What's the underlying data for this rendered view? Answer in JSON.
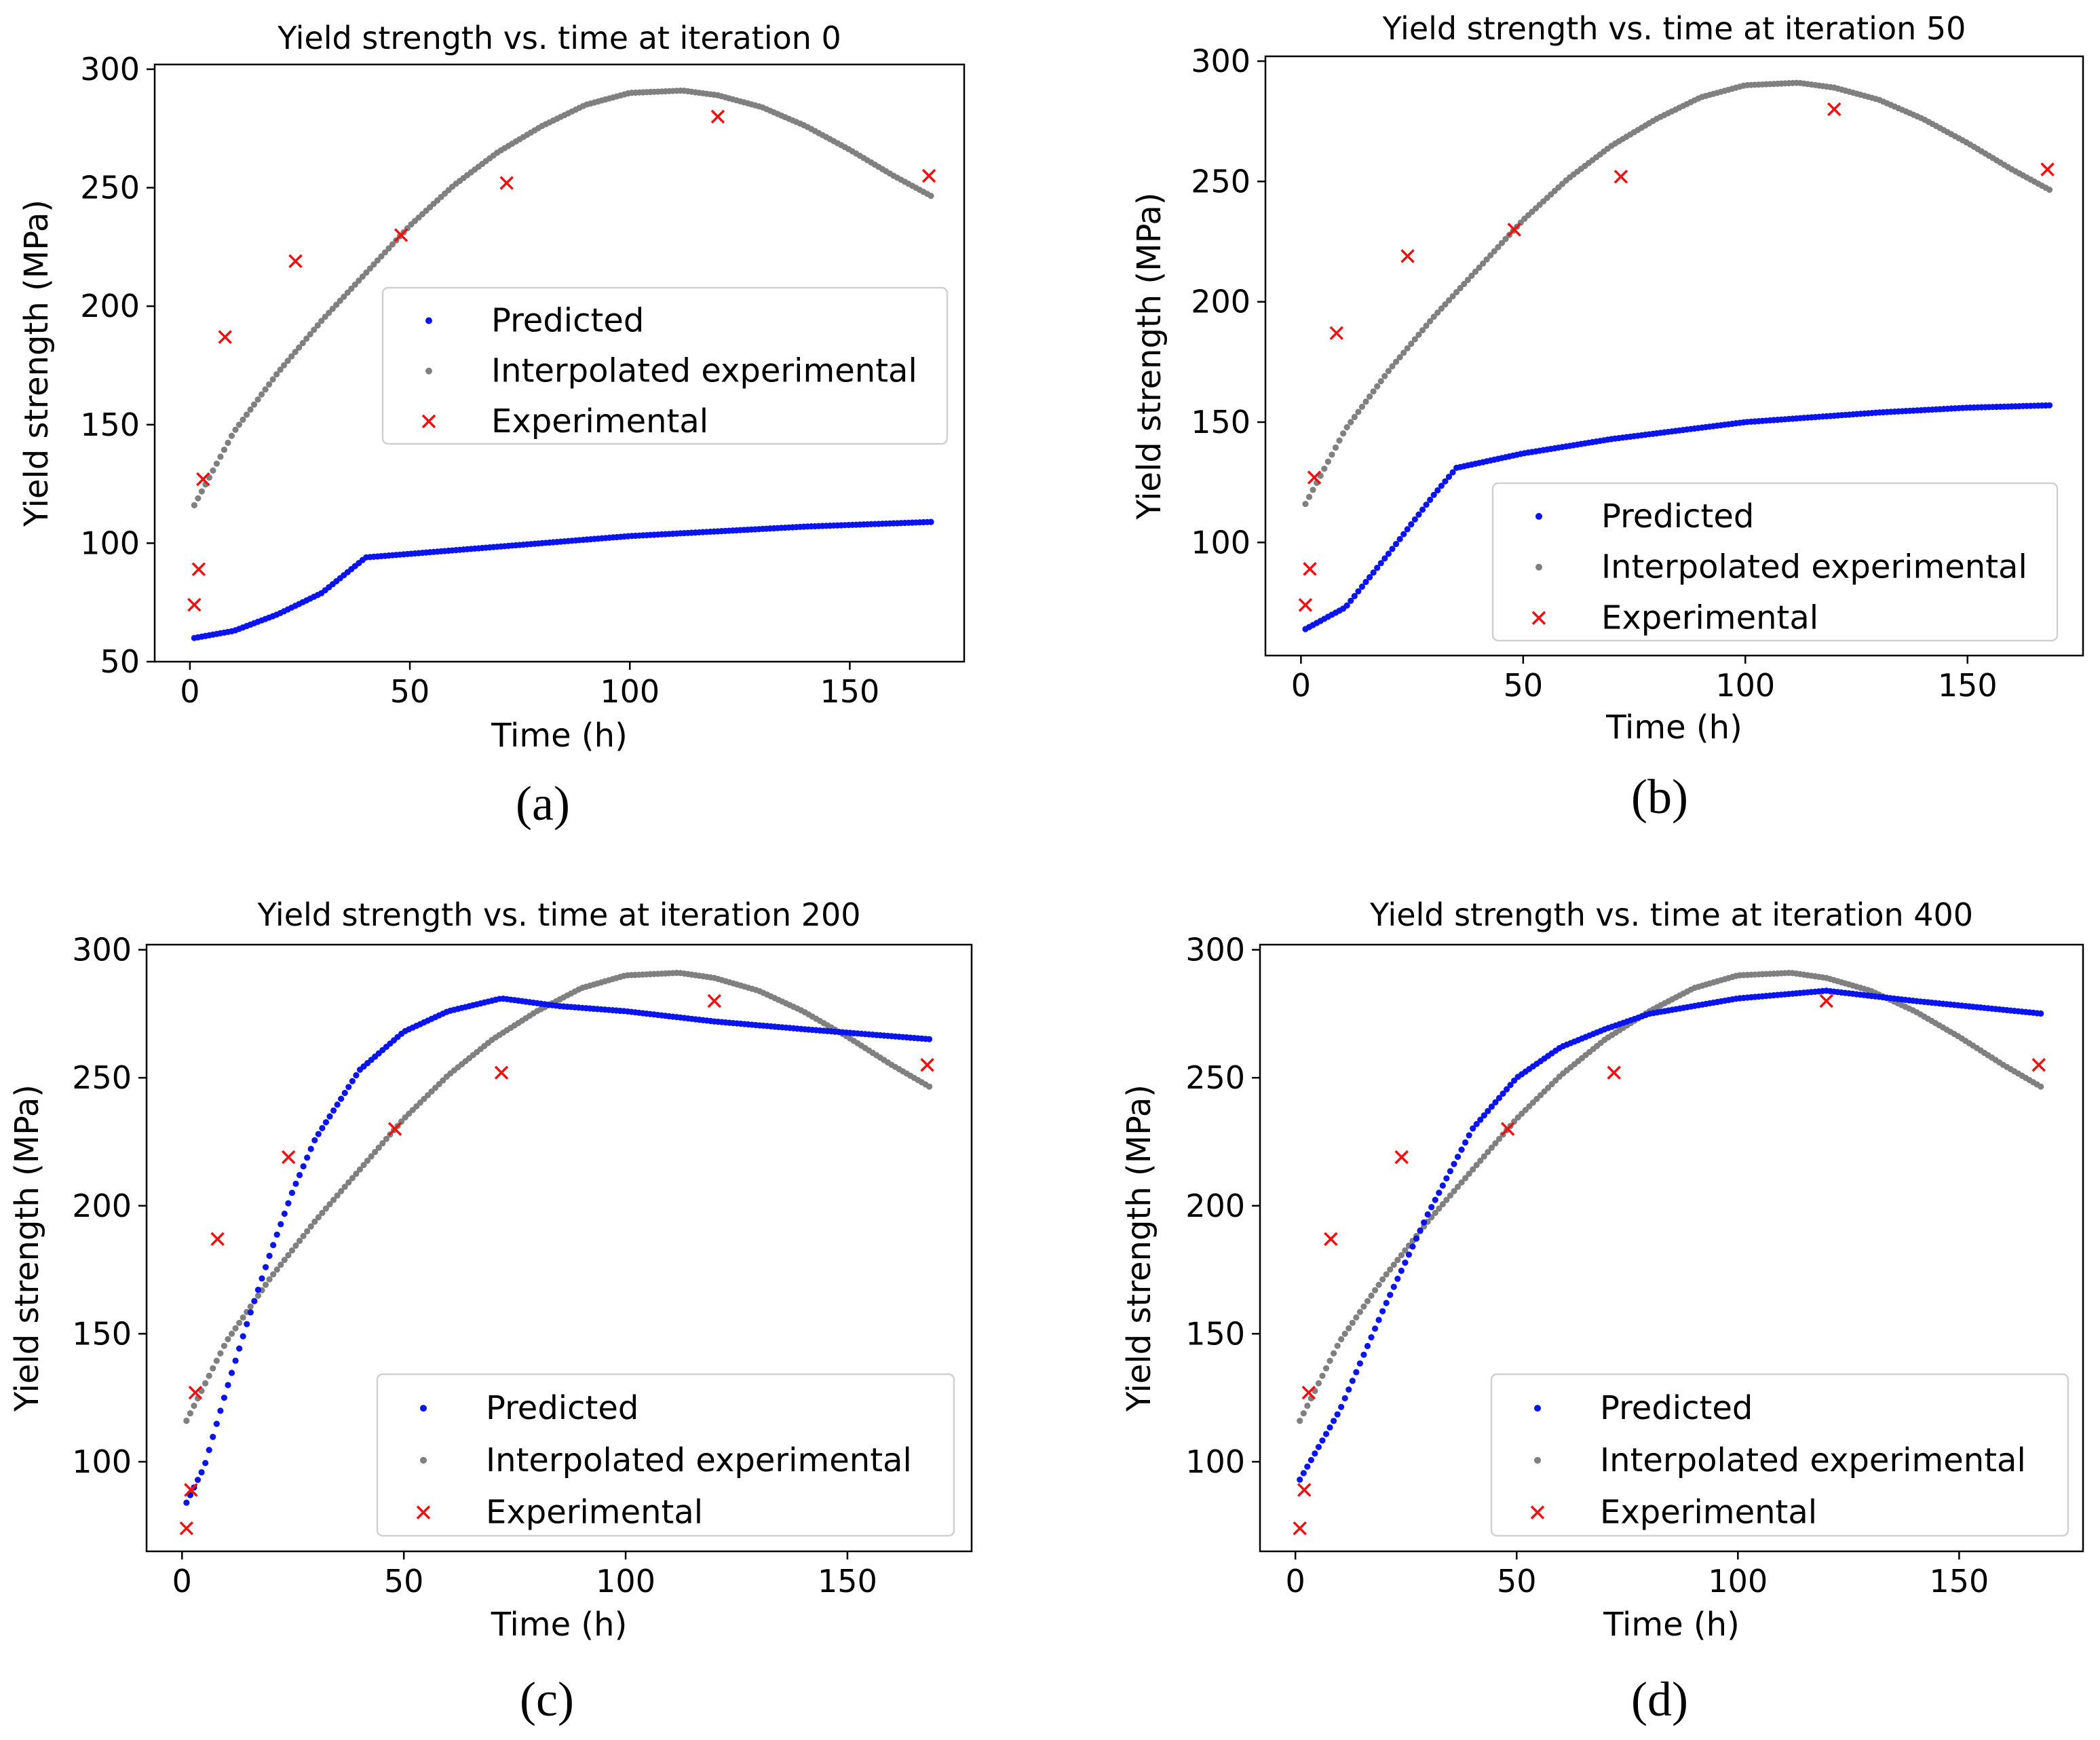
{
  "figure": {
    "subplot_labels": [
      "(a)",
      "(b)",
      "(c)",
      "(d)"
    ]
  },
  "colors": {
    "predicted": "#0a14f0",
    "interpolated": "#808080",
    "experimental": "#ee1111",
    "axis": "#000000",
    "legend_border": "#d0d0d0"
  },
  "chart_data": [
    {
      "type": "scatter",
      "title": "Yield strength vs. time at iteration 0",
      "xlabel": "Time (h)",
      "ylabel": "Yield strength (MPa)",
      "xlim": [
        -8,
        176
      ],
      "ylim": [
        50,
        302
      ],
      "xticks": [
        0,
        50,
        100,
        150
      ],
      "yticks": [
        50,
        100,
        150,
        200,
        250,
        300
      ],
      "grid": false,
      "legend_position": "center-right",
      "legend": [
        "Predicted",
        "Interpolated experimental",
        "Experimental"
      ],
      "series": [
        {
          "name": "Predicted",
          "marker": "dot",
          "x": [
            1,
            10,
            20,
            30,
            40,
            60,
            80,
            100,
            120,
            140,
            169
          ],
          "y": [
            60,
            63,
            70,
            79,
            94,
            97,
            100,
            103,
            105,
            107,
            109
          ]
        },
        {
          "name": "Interpolated experimental",
          "marker": "dot",
          "x": [
            1,
            10,
            20,
            30,
            40,
            50,
            60,
            70,
            80,
            90,
            100,
            112,
            120,
            130,
            140,
            150,
            160,
            169
          ],
          "y": [
            116,
            147,
            172,
            194,
            214,
            234,
            251,
            265,
            276,
            285,
            290,
            291,
            289,
            284,
            276,
            266,
            255,
            246
          ]
        },
        {
          "name": "Experimental",
          "marker": "x",
          "x": [
            1,
            2,
            3,
            8,
            24,
            48,
            72,
            120,
            168
          ],
          "y": [
            74,
            89,
            127,
            187,
            219,
            230,
            252,
            280,
            255
          ]
        }
      ]
    },
    {
      "type": "scatter",
      "title": "Yield strength vs. time at iteration 50",
      "xlabel": "Time (h)",
      "ylabel": "Yield strength (MPa)",
      "xlim": [
        -8,
        176
      ],
      "ylim": [
        53,
        302
      ],
      "xticks": [
        0,
        50,
        100,
        150
      ],
      "yticks": [
        100,
        150,
        200,
        250,
        300
      ],
      "grid": false,
      "legend_position": "lower-right",
      "legend": [
        "Predicted",
        "Interpolated experimental",
        "Experimental"
      ],
      "series": [
        {
          "name": "Predicted",
          "marker": "dot",
          "x": [
            1,
            10,
            20,
            30,
            35,
            50,
            70,
            100,
            130,
            150,
            169
          ],
          "y": [
            64,
            73,
            96,
            120,
            131,
            137,
            143,
            150,
            154,
            156,
            157
          ]
        },
        {
          "name": "Interpolated experimental",
          "marker": "dot",
          "x": [
            1,
            10,
            20,
            30,
            40,
            50,
            60,
            70,
            80,
            90,
            100,
            112,
            120,
            130,
            140,
            150,
            160,
            169
          ],
          "y": [
            116,
            147,
            172,
            194,
            214,
            234,
            251,
            265,
            276,
            285,
            290,
            291,
            289,
            284,
            276,
            266,
            255,
            246
          ]
        },
        {
          "name": "Experimental",
          "marker": "x",
          "x": [
            1,
            2,
            3,
            8,
            24,
            48,
            72,
            120,
            168
          ],
          "y": [
            74,
            89,
            127,
            187,
            219,
            230,
            252,
            280,
            255
          ]
        }
      ]
    },
    {
      "type": "scatter",
      "title": "Yield strength vs. time at iteration 200",
      "xlabel": "Time (h)",
      "ylabel": "Yield strength (MPa)",
      "xlim": [
        -8,
        178
      ],
      "ylim": [
        65,
        302
      ],
      "xticks": [
        0,
        50,
        100,
        150
      ],
      "yticks": [
        100,
        150,
        200,
        250,
        300
      ],
      "grid": false,
      "legend_position": "lower-right",
      "legend": [
        "Predicted",
        "Interpolated experimental",
        "Experimental"
      ],
      "series": [
        {
          "name": "Predicted",
          "marker": "dot",
          "x": [
            1,
            5,
            10,
            15,
            20,
            25,
            30,
            40,
            50,
            60,
            72,
            85,
            100,
            120,
            140,
            169
          ],
          "y": [
            84,
            98,
            128,
            156,
            182,
            206,
            226,
            253,
            268,
            276,
            281,
            278,
            276,
            272,
            269,
            265
          ]
        },
        {
          "name": "Interpolated experimental",
          "marker": "dot",
          "x": [
            1,
            10,
            20,
            30,
            40,
            50,
            60,
            70,
            80,
            90,
            100,
            112,
            120,
            130,
            140,
            150,
            160,
            169
          ],
          "y": [
            116,
            147,
            172,
            194,
            214,
            234,
            251,
            265,
            276,
            285,
            290,
            291,
            289,
            284,
            276,
            266,
            255,
            246
          ]
        },
        {
          "name": "Experimental",
          "marker": "x",
          "x": [
            1,
            2,
            3,
            8,
            24,
            48,
            72,
            120,
            168
          ],
          "y": [
            74,
            89,
            127,
            187,
            219,
            230,
            252,
            280,
            255
          ]
        }
      ]
    },
    {
      "type": "scatter",
      "title": "Yield strength vs. time at iteration 400",
      "xlabel": "Time (h)",
      "ylabel": "Yield strength (MPa)",
      "xlim": [
        -8,
        178
      ],
      "ylim": [
        65,
        302
      ],
      "xticks": [
        0,
        50,
        100,
        150
      ],
      "yticks": [
        100,
        150,
        200,
        250,
        300
      ],
      "grid": false,
      "legend_position": "lower-right",
      "legend": [
        "Predicted",
        "Interpolated experimental",
        "Experimental"
      ],
      "series": [
        {
          "name": "Predicted",
          "marker": "dot",
          "x": [
            1,
            10,
            20,
            30,
            40,
            50,
            60,
            70,
            80,
            100,
            120,
            140,
            169
          ],
          "y": [
            93,
            120,
            160,
            197,
            230,
            250,
            262,
            269,
            275,
            281,
            284,
            280,
            275
          ]
        },
        {
          "name": "Interpolated experimental",
          "marker": "dot",
          "x": [
            1,
            10,
            20,
            30,
            40,
            50,
            60,
            70,
            80,
            90,
            100,
            112,
            120,
            130,
            140,
            150,
            160,
            169
          ],
          "y": [
            116,
            147,
            172,
            194,
            214,
            234,
            251,
            265,
            276,
            285,
            290,
            291,
            289,
            284,
            276,
            266,
            255,
            246
          ]
        },
        {
          "name": "Experimental",
          "marker": "x",
          "x": [
            1,
            2,
            3,
            8,
            24,
            48,
            72,
            120,
            168
          ],
          "y": [
            74,
            89,
            127,
            187,
            219,
            230,
            252,
            280,
            255
          ]
        }
      ]
    }
  ]
}
